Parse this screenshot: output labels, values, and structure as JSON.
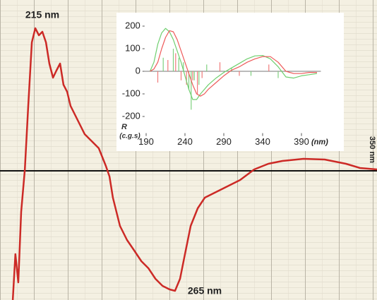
{
  "chart_data": [
    {
      "type": "line",
      "annotations": [
        "215 nm",
        "265 nm",
        "350 nm"
      ],
      "x": [
        203.9,
        204.9,
        206.0,
        207.1,
        208.5,
        209.8,
        211.2,
        212.5,
        213.9,
        215.2,
        216.6,
        217.9,
        219.3,
        220.6,
        222.0,
        223.3,
        224.7,
        226.0,
        228.7,
        231.4,
        234.1,
        236.8,
        239.5,
        240.9,
        242.2,
        244.9,
        247.6,
        250.4,
        253.1,
        255.8,
        258.5,
        261.2,
        263.9,
        266.0,
        267.9,
        269.8,
        272.0,
        274.7,
        277.4,
        280.1,
        285.5,
        290.9,
        296.3,
        301.7,
        307.1,
        315.2,
        323.3,
        331.4,
        336.8,
        343.3
      ],
      "series": [
        {
          "color": "#cc2a26",
          "values": [
            -183,
            -118,
            -158,
            -58,
            2,
            92,
            182,
            202,
            192,
            197,
            182,
            152,
            132,
            142,
            152,
            122,
            112,
            92,
            72,
            52,
            42,
            32,
            7,
            -8,
            -38,
            -78,
            -98,
            -113,
            -128,
            -138,
            -153,
            -163,
            -168,
            -170,
            -153,
            -118,
            -78,
            -53,
            -38,
            -33,
            -23,
            -13,
            2,
            10,
            14,
            17,
            16,
            10,
            4,
            2
          ]
        }
      ],
      "xlim": [
        199,
        343.3
      ],
      "ylim": [
        -183,
        242
      ],
      "baseline": 0
    },
    {
      "type": "line",
      "ylabel": [
        "R",
        "(c.g.s)"
      ],
      "xlabel": "(nm)",
      "x": [
        195,
        200,
        205,
        210,
        215,
        220,
        225,
        230,
        235,
        240,
        245,
        250,
        255,
        260,
        265,
        270,
        280,
        290,
        300,
        310,
        320,
        330,
        340,
        350,
        360,
        370,
        380,
        390,
        400,
        410
      ],
      "series": [
        {
          "color": "#6fcf6f",
          "values": [
            0,
            40,
            120,
            170,
            190,
            175,
            140,
            90,
            40,
            -20,
            -80,
            -125,
            -125,
            -100,
            -80,
            -60,
            -30,
            -5,
            15,
            35,
            55,
            68,
            70,
            55,
            20,
            -25,
            -30,
            -20,
            -15,
            -10
          ]
        },
        {
          "color": "#ee5a5a",
          "values": [
            0,
            10,
            40,
            100,
            150,
            180,
            175,
            140,
            90,
            40,
            -10,
            -60,
            -100,
            -110,
            -100,
            -80,
            -50,
            -20,
            5,
            20,
            40,
            55,
            65,
            65,
            40,
            0,
            -10,
            -10,
            -5,
            -5
          ]
        }
      ],
      "sticks": [
        {
          "color": "#7fd07f",
          "x": [
            212,
            225,
            232,
            238,
            245,
            248,
            252,
            258,
            268,
            300,
            325,
            360
          ],
          "values": [
            60,
            100,
            60,
            40,
            -80,
            -170,
            -40,
            -60,
            30,
            15,
            -20,
            -30
          ]
        },
        {
          "color": "#f07a7a",
          "x": [
            205,
            218,
            228,
            235,
            242,
            250,
            256,
            262,
            285,
            310,
            348
          ],
          "values": [
            -50,
            50,
            80,
            -40,
            -60,
            -40,
            -100,
            -30,
            40,
            -20,
            30
          ]
        }
      ],
      "xlim": [
        188,
        415
      ],
      "ylim": [
        -230,
        230
      ],
      "xticks": [
        190,
        240,
        290,
        340,
        390
      ],
      "yticks": [
        200,
        100,
        0,
        -100,
        -200
      ],
      "baseline": 0
    }
  ]
}
